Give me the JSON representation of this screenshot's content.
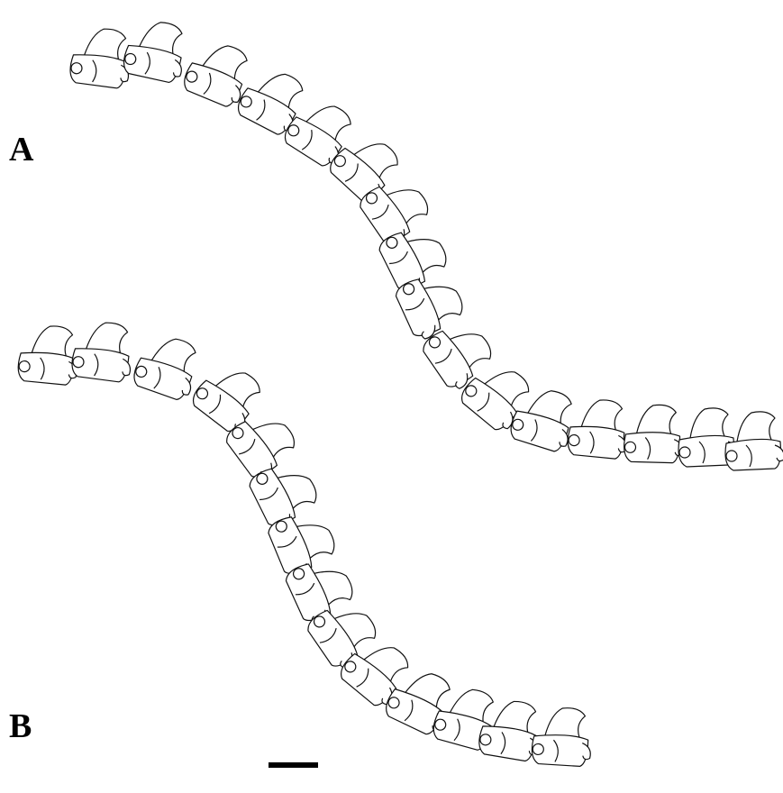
{
  "figure": {
    "panels": [
      {
        "label": "A"
      },
      {
        "label": "B"
      }
    ]
  }
}
